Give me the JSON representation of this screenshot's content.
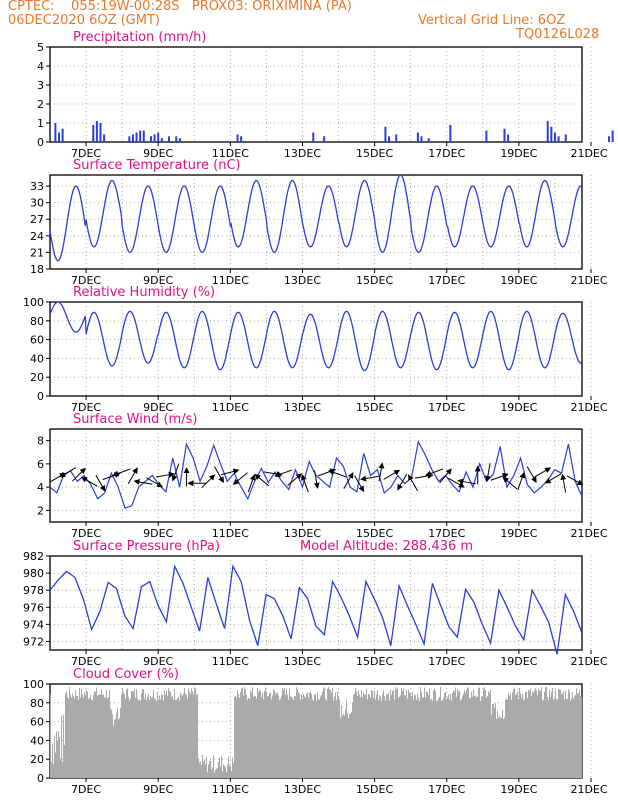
{
  "header": {
    "line1_left": "CPTEC:    055:19W-00:28S   PROX03: ORIXIMINA (PA)",
    "line2_left": "06DEC2020 6OZ (GMT)",
    "line2_right": "Vertical Grid Line: 6OZ",
    "line3_right": "TQ0126L028",
    "text_color": "#e8792a"
  },
  "x_ticks": [
    "7DEC",
    "9DEC",
    "11DEC",
    "13DEC",
    "15DEC",
    "17DEC",
    "19DEC",
    "21DEC"
  ],
  "colors": {
    "line": "#2a3fd6",
    "title": "#e0108a",
    "grid": "#9a9a9a",
    "cloud": "#aaaaaa",
    "arrow": "#000000"
  },
  "panels": {
    "precip": {
      "title": "Precipitation (mm/h)",
      "ylabels": [
        "0",
        "1",
        "2",
        "3",
        "4",
        "5"
      ]
    },
    "temp": {
      "title": "Surface Temperature (nC)",
      "ylabels": [
        "18",
        "21",
        "24",
        "27",
        "30",
        "33"
      ]
    },
    "rh": {
      "title": "Relative Humidity (%)",
      "ylabels": [
        "0",
        "20",
        "40",
        "60",
        "80",
        "100"
      ]
    },
    "wind": {
      "title": "Surface Wind (m/s)",
      "ylabels": [
        "2",
        "4",
        "6",
        "8"
      ]
    },
    "pres": {
      "title": "Surface Pressure (hPa)",
      "altitude": "Model Altitude: 288.436 m",
      "ylabels": [
        "972",
        "974",
        "976",
        "978",
        "980",
        "982"
      ]
    },
    "cloud": {
      "title": "Cloud Cover (%)",
      "ylabels": [
        "0",
        "20",
        "40",
        "60",
        "80",
        "100"
      ]
    }
  },
  "chart_data": [
    {
      "type": "bar",
      "title": "Precipitation (mm/h)",
      "x_unit": "days since 06DEC2020 06Z",
      "ylim": [
        0,
        5
      ],
      "x": [
        0.15,
        0.25,
        0.35,
        1.2,
        1.3,
        1.4,
        1.5,
        2.2,
        2.3,
        2.4,
        2.5,
        2.6,
        2.8,
        2.9,
        3.0,
        3.1,
        3.3,
        3.5,
        3.6,
        5.2,
        5.3,
        7.3,
        7.6,
        9.3,
        9.4,
        9.6,
        10.2,
        10.3,
        10.5,
        11.1,
        12.1,
        12.6,
        12.7,
        13.8,
        13.9,
        14.0,
        14.1,
        14.3,
        15.5,
        15.6,
        16.5,
        16.6,
        16.7,
        16.8
      ],
      "values": [
        1.0,
        0.5,
        0.7,
        0.9,
        1.1,
        1.0,
        0.4,
        0.3,
        0.4,
        0.5,
        0.6,
        0.6,
        0.3,
        0.4,
        0.5,
        0.2,
        0.3,
        0.3,
        0.2,
        0.4,
        0.3,
        0.5,
        0.3,
        0.8,
        0.3,
        0.4,
        0.5,
        0.3,
        0.2,
        0.9,
        0.6,
        0.7,
        0.4,
        1.1,
        0.8,
        0.5,
        0.3,
        0.4,
        0.3,
        0.6,
        0.3,
        0.4,
        0.8,
        0.6
      ]
    },
    {
      "type": "line",
      "title": "Surface Temperature (nC)",
      "ylim": [
        18,
        35
      ],
      "day_max": [
        33,
        34,
        33,
        33,
        33,
        34,
        34,
        33,
        34,
        35,
        33,
        33,
        33,
        34,
        33
      ],
      "day_min": [
        19.5,
        22,
        21,
        21,
        21,
        22,
        21,
        22,
        22,
        21,
        21,
        22,
        22,
        22,
        22
      ]
    },
    {
      "type": "line",
      "title": "Relative Humidity (%)",
      "ylim": [
        0,
        100
      ],
      "day_max": [
        100,
        89,
        90,
        89,
        90,
        89,
        90,
        87,
        90,
        90,
        89,
        89,
        90,
        90,
        88
      ],
      "day_min": [
        68,
        32,
        35,
        30,
        28,
        30,
        30,
        30,
        27,
        30,
        28,
        30,
        28,
        30,
        35
      ]
    },
    {
      "type": "line",
      "title": "Surface Wind (m/s)",
      "ylim": [
        1,
        9
      ],
      "values": [
        4.0,
        3.5,
        5.0,
        5.4,
        4.5,
        5.0,
        4.2,
        3.0,
        3.5,
        5.2,
        4.0,
        2.2,
        2.4,
        4.0,
        4.5,
        5.0,
        4.2,
        3.6,
        6.5,
        4.0,
        7.7,
        6.5,
        4.5,
        5.8,
        7.6,
        6.0,
        4.5,
        5.2,
        4.0,
        3.0,
        4.5,
        5.6,
        4.4,
        5.3,
        4.5,
        3.8,
        5.5,
        4.0,
        6.2,
        5.0,
        4.5,
        4.0,
        6.5,
        5.8,
        4.0,
        3.6,
        6.9,
        5.0,
        5.5,
        3.5,
        4.0,
        5.0,
        4.3,
        4.8,
        7.9,
        6.8,
        5.5,
        4.5,
        5.0,
        4.2,
        3.6,
        5.3,
        4.0,
        6.0,
        4.5,
        5.1,
        7.5,
        4.0,
        5.0,
        6.5,
        4.2,
        3.5,
        4.0,
        4.6,
        5.5,
        5.2,
        7.7,
        4.5,
        3.2
      ],
      "arrow_deg": [
        30,
        210,
        45,
        150,
        300,
        20,
        200,
        60,
        170,
        330,
        10,
        250,
        90,
        180,
        45,
        300,
        15,
        220,
        70,
        140,
        350,
        200,
        40,
        110,
        280,
        20,
        160,
        60,
        300,
        190,
        80,
        30,
        240,
        120,
        10,
        200,
        50,
        330,
        170,
        90,
        260,
        20,
        140,
        70,
        300,
        30,
        210,
        100,
        330
      ]
    },
    {
      "type": "line",
      "title": "Surface Pressure (hPa)",
      "ylim": [
        971,
        982
      ],
      "values": [
        978.0,
        979.2,
        980.2,
        979.5,
        977.0,
        973.4,
        975.5,
        978.9,
        978.2,
        975.0,
        973.5,
        978.4,
        979.0,
        976.2,
        974.3,
        980.8,
        978.8,
        976.0,
        973.2,
        979.5,
        976.4,
        973.5,
        980.8,
        979.0,
        974.5,
        971.5,
        977.5,
        977.0,
        975.0,
        972.3,
        978.3,
        977.0,
        973.8,
        972.8,
        979.0,
        977.2,
        975.0,
        972.5,
        979.0,
        977.0,
        974.8,
        971.5,
        978.5,
        976.2,
        974.0,
        971.7,
        978.8,
        976.2,
        973.7,
        972.5,
        978.1,
        976.6,
        974.0,
        971.8,
        978.0,
        976.0,
        973.8,
        972.2,
        978.0,
        976.2,
        974.2,
        970.5,
        977.5,
        975.5,
        973.0
      ]
    },
    {
      "type": "bar",
      "title": "Cloud Cover (%)",
      "ylim": [
        0,
        100
      ],
      "typical_range": [
        82,
        97
      ]
    }
  ]
}
